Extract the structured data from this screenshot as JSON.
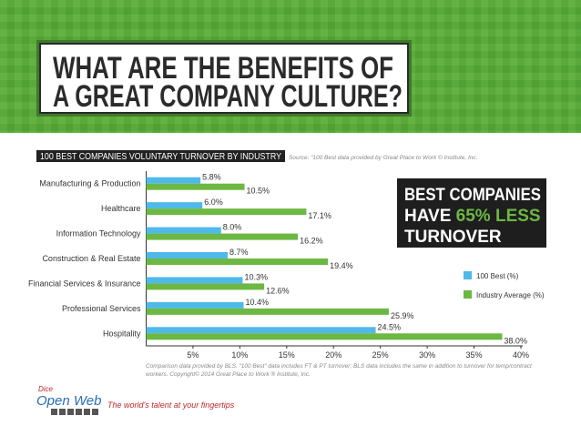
{
  "header": {
    "title_lines": [
      "WHAT ARE THE BENEFITS OF",
      "A GREAT COMPANY CULTURE?"
    ]
  },
  "chart_data": {
    "type": "bar",
    "orientation": "horizontal",
    "title": "100 BEST COMPANIES VOLUNTARY TURNOVER BY INDUSTRY",
    "source": "Source: “100 Best data provided by Great Place to Work © Institute, Inc.",
    "categories": [
      "Manufacturing & Production",
      "Healthcare",
      "Information Technology",
      "Construction & Real Estate",
      "Financial Services & Insurance",
      "Professional Services",
      "Hospitality"
    ],
    "series": [
      {
        "name": "100 Best (%)",
        "color": "#4fb9e9",
        "values": [
          5.8,
          6.0,
          8.0,
          8.7,
          10.3,
          10.4,
          24.5
        ],
        "value_labels": [
          "5.8%",
          "6.0%",
          "8.0%",
          "8.7%",
          "10.3%",
          "10.4%",
          "24.5%"
        ]
      },
      {
        "name": "Industry Average (%)",
        "color": "#6cb843",
        "values": [
          10.5,
          17.1,
          16.2,
          19.4,
          12.6,
          25.9,
          38.0
        ],
        "value_labels": [
          "10.5%",
          "17.1%",
          "16.2%",
          "19.4%",
          "12.6%",
          "25.9%",
          "38.0%"
        ]
      }
    ],
    "xlim": [
      0,
      40
    ],
    "xticks": [
      {
        "value": 5,
        "label": "5%"
      },
      {
        "value": 10,
        "label": "10%"
      },
      {
        "value": 15,
        "label": "15%"
      },
      {
        "value": 20,
        "label": "20%"
      },
      {
        "value": 25,
        "label": "25%"
      },
      {
        "value": 30,
        "label": "30%"
      },
      {
        "value": 35,
        "label": "35%"
      },
      {
        "value": 40,
        "label": "40%"
      }
    ],
    "footnote": [
      "Comparison data provided by BLS. “100 Best” data includes FT & PT turnover; BLS data includes the same in addition to turnover for temp/contract",
      "workers. Copyright© 2014 Great Place to Work ® Institute, Inc."
    ]
  },
  "callout": {
    "line1": "BEST COMPANIES",
    "line2_start": "HAVE ",
    "line2_highlight": "65% LESS",
    "line3": "TURNOVER"
  },
  "footer": {
    "logo_small": "Dice",
    "logo": "Open Web",
    "tagline": "The world's talent at your fingertips"
  }
}
